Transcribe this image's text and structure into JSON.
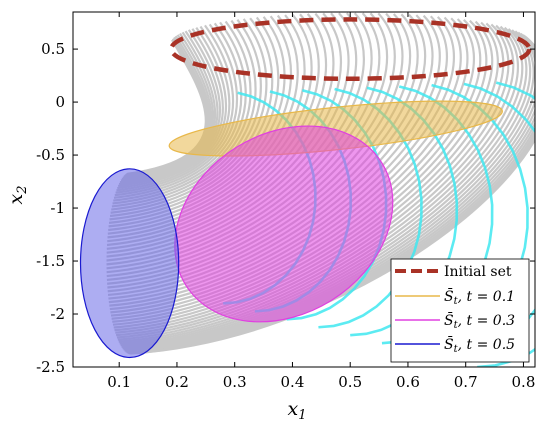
{
  "chart_data": {
    "type": "scatter",
    "xlabel": "x",
    "xlabel_sub": "1",
    "ylabel": "x",
    "ylabel_sub": "2",
    "xlim": [
      0.02,
      0.82
    ],
    "ylim": [
      -2.5,
      0.85
    ],
    "xticks": [
      0.1,
      0.2,
      0.3,
      0.4,
      0.5,
      0.6,
      0.7,
      0.8
    ],
    "xtick_labels": [
      "0.1",
      "0.2",
      "0.3",
      "0.4",
      "0.5",
      "0.6",
      "0.7",
      "0.8"
    ],
    "yticks": [
      0.5,
      0,
      -0.5,
      -1,
      -1.5,
      -2,
      -2.5
    ],
    "ytick_labels": [
      "0.5",
      "0",
      "-0.5",
      "-1",
      "-1.5",
      "-2",
      "-2.5"
    ],
    "grid": false,
    "legend_position": "bottom-right",
    "trajectories": {
      "color": "#c8c8c8",
      "highlight_color": "#40e8f0",
      "start_curve": {
        "center": [
          0.5,
          0.56
        ],
        "rx": 0.31,
        "ry": 0.28
      },
      "end_curve": {
        "center": [
          0.12,
          -1.52
        ],
        "rx": 0.07,
        "ry": 0.87
      }
    },
    "series": [
      {
        "name": "Initial set",
        "kind": "ellipse",
        "color": "#a93226",
        "style": "dashed",
        "center": [
          0.5,
          0.5
        ],
        "rx": 0.31,
        "ry": 0.28,
        "angle_deg": 0
      },
      {
        "name": "S̄",
        "name_sub": "t",
        "name_tail": ", t = 0.1",
        "kind": "ellipse",
        "color": "#e8b84a",
        "fill": "#e8b84a",
        "style": "solid",
        "center": [
          0.475,
          -0.25
        ],
        "rx": 0.29,
        "ry": 0.2,
        "angle_deg": -6
      },
      {
        "name": "S̄",
        "name_sub": "t",
        "name_tail": ", t = 0.3",
        "kind": "ellipse",
        "color": "#e040e0",
        "fill": "#e040e0",
        "style": "solid",
        "center": [
          0.385,
          -1.15
        ],
        "rx": 0.2,
        "ry": 0.85,
        "angle_deg": -32
      },
      {
        "name": "S̄",
        "name_sub": "t",
        "name_tail": ", t = 0.5",
        "kind": "ellipse",
        "color": "#1a1ad0",
        "fill": "#6a6ae8",
        "style": "solid",
        "center": [
          0.118,
          -1.52
        ],
        "rx": 0.085,
        "ry": 0.89,
        "angle_deg": 0
      }
    ]
  }
}
